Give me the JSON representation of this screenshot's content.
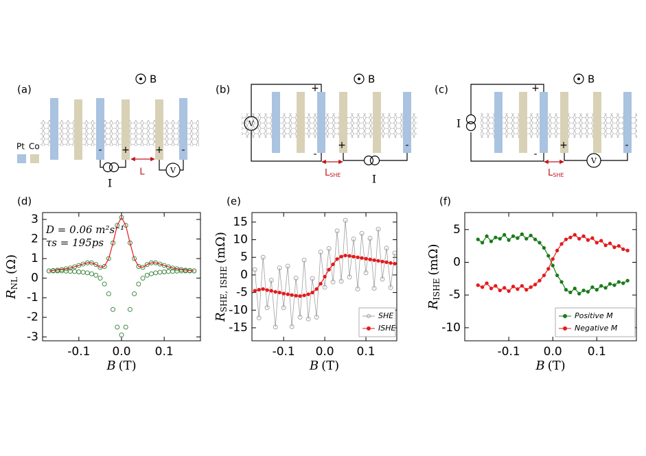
{
  "diagrams": [
    {
      "label": "(a)",
      "field": "B",
      "materials": [
        "Pt",
        "Co"
      ],
      "signs": [
        "-",
        "+",
        "+",
        "-"
      ],
      "source": "I",
      "distance": "L",
      "meter": "V"
    },
    {
      "label": "(b)",
      "field": "B",
      "signs": [
        "+",
        "-",
        "+",
        "-"
      ],
      "source": "I",
      "distance": {
        "main": "L",
        "sub": "SHE"
      },
      "meter": "V"
    },
    {
      "label": "(c)",
      "field": "B",
      "signs": [
        "+",
        "-",
        "+",
        "-"
      ],
      "source": "I",
      "distance": {
        "main": "L",
        "sub": "SHE"
      },
      "meter": "V"
    }
  ],
  "chart_data": [
    {
      "type": "line",
      "panel_label": "(d)",
      "x_label": {
        "main": "B",
        "unit": "(T)"
      },
      "y_label": {
        "main": "R",
        "sub": "NL",
        "unit": "(Ω)"
      },
      "annotations": [
        "D = 0.06 m²s⁻¹",
        "τs = 195ps"
      ],
      "x": [
        -0.17,
        -0.16,
        -0.15,
        -0.14,
        -0.13,
        -0.12,
        -0.11,
        -0.1,
        -0.09,
        -0.08,
        -0.07,
        -0.06,
        -0.05,
        -0.04,
        -0.03,
        -0.02,
        -0.01,
        0,
        0.01,
        0.02,
        0.03,
        0.04,
        0.05,
        0.06,
        0.07,
        0.08,
        0.09,
        0.1,
        0.11,
        0.12,
        0.13,
        0.14,
        0.15,
        0.16,
        0.17
      ],
      "xlim": [
        -0.185,
        0.185
      ],
      "xticks": [
        -0.1,
        {
          "value": 0,
          "label": "0.0"
        },
        0.1
      ],
      "ylim": [
        -3.2,
        3.35
      ],
      "yticks": [
        -3,
        -2,
        -1,
        0,
        1,
        2,
        3
      ],
      "series": [
        {
          "color": "#2e7d32",
          "marker": "open-circle",
          "line": false,
          "values": [
            0.37,
            0.39,
            0.41,
            0.44,
            0.48,
            0.52,
            0.58,
            0.65,
            0.72,
            0.78,
            0.78,
            0.7,
            0.55,
            0.6,
            1.0,
            1.8,
            2.7,
            3.1,
            2.7,
            1.8,
            1.0,
            0.6,
            0.55,
            0.7,
            0.78,
            0.78,
            0.72,
            0.65,
            0.58,
            0.52,
            0.48,
            0.44,
            0.41,
            0.39,
            0.37
          ]
        },
        {
          "color": "#2e7d32",
          "marker": "open-circle",
          "line": false,
          "values": [
            0.37,
            0.37,
            0.37,
            0.37,
            0.36,
            0.35,
            0.34,
            0.32,
            0.3,
            0.27,
            0.22,
            0.15,
            0.0,
            -0.3,
            -0.8,
            -1.6,
            -2.5,
            -2.9,
            -2.5,
            -1.6,
            -0.8,
            -0.3,
            0.0,
            0.15,
            0.22,
            0.27,
            0.3,
            0.32,
            0.34,
            0.35,
            0.36,
            0.37,
            0.37,
            0.37,
            0.37
          ]
        },
        {
          "color": "#e41a1c",
          "marker": "none",
          "line": true,
          "values": [
            0.37,
            0.39,
            0.41,
            0.44,
            0.48,
            0.52,
            0.58,
            0.65,
            0.72,
            0.78,
            0.78,
            0.7,
            0.55,
            0.6,
            1.0,
            1.8,
            2.7,
            3.1,
            2.7,
            1.8,
            1.0,
            0.6,
            0.55,
            0.7,
            0.78,
            0.78,
            0.72,
            0.65,
            0.58,
            0.52,
            0.48,
            0.44,
            0.41,
            0.39,
            0.37
          ]
        }
      ]
    },
    {
      "type": "line",
      "panel_label": "(e)",
      "x_label": {
        "main": "B",
        "unit": "(T)"
      },
      "y_label": {
        "main": "R",
        "sub": "SHE, ISHE",
        "unit": "(mΩ)"
      },
      "legend": "lower right",
      "x": [
        -0.17,
        -0.16,
        -0.15,
        -0.14,
        -0.13,
        -0.12,
        -0.11,
        -0.1,
        -0.09,
        -0.08,
        -0.07,
        -0.06,
        -0.05,
        -0.04,
        -0.03,
        -0.02,
        -0.01,
        0,
        0.01,
        0.02,
        0.03,
        0.04,
        0.05,
        0.06,
        0.07,
        0.08,
        0.09,
        0.1,
        0.11,
        0.12,
        0.13,
        0.14,
        0.15,
        0.16,
        0.17
      ],
      "xlim": [
        -0.177,
        0.175
      ],
      "xticks": [
        -0.1,
        {
          "value": 0,
          "label": "0.0"
        },
        0.1
      ],
      "ylim": [
        -18.7,
        17.7
      ],
      "yticks": [
        -15,
        -10,
        -5,
        0,
        5,
        10,
        15
      ],
      "series": [
        {
          "name": "SHE",
          "color": "#9e9e9e",
          "marker": "open-circle",
          "line": true,
          "values": [
            1.5,
            -12.2,
            5,
            -9.3,
            -1.5,
            -14.8,
            2,
            -9.3,
            2.5,
            -14.7,
            -0.9,
            -12,
            4.2,
            -12.5,
            -1,
            -12,
            6.5,
            -3.5,
            7.5,
            -2,
            12.5,
            -1.8,
            15.5,
            -0.6,
            10.2,
            -4,
            11.8,
            0.6,
            10.4,
            -3.8,
            13,
            -1.2,
            7.6,
            -3.6,
            6.2
          ]
        },
        {
          "name": "ISHE",
          "color": "#e41a1c",
          "marker": "dot",
          "line": true,
          "values": [
            -4.5,
            -4.2,
            -4.0,
            -4.3,
            -4.5,
            -4.8,
            -5.0,
            -5.3,
            -5.5,
            -5.7,
            -5.9,
            -6.0,
            -5.8,
            -5.5,
            -5.0,
            -4.0,
            -2.5,
            -0.5,
            1.5,
            3.0,
            4.5,
            5.2,
            5.5,
            5.4,
            5.2,
            5.0,
            4.8,
            4.6,
            4.4,
            4.2,
            4.0,
            3.8,
            3.6,
            3.4,
            3.2
          ]
        }
      ]
    },
    {
      "type": "line",
      "panel_label": "(f)",
      "x_label": {
        "main": "B",
        "unit": "(T)"
      },
      "y_label": {
        "main": "R",
        "sub": "ISHE",
        "unit": "(mΩ)"
      },
      "legend": "lower right",
      "x": [
        -0.17,
        -0.16,
        -0.15,
        -0.14,
        -0.13,
        -0.12,
        -0.11,
        -0.1,
        -0.09,
        -0.08,
        -0.07,
        -0.06,
        -0.05,
        -0.04,
        -0.03,
        -0.02,
        -0.01,
        0,
        0.01,
        0.02,
        0.03,
        0.04,
        0.05,
        0.06,
        0.07,
        0.08,
        0.09,
        0.1,
        0.11,
        0.12,
        0.13,
        0.14,
        0.15,
        0.16,
        0.17
      ],
      "xlim": [
        -0.2,
        0.19
      ],
      "xticks": [
        -0.1,
        {
          "value": 0,
          "label": "0.0"
        },
        0.1
      ],
      "ylim": [
        -12,
        7.6
      ],
      "yticks": [
        -10,
        -5,
        0,
        5
      ],
      "series": [
        {
          "name": "Positive M",
          "color": "#1b7a1b",
          "marker": "dot",
          "line": true,
          "values": [
            3.5,
            3.0,
            4.0,
            3.2,
            3.8,
            3.6,
            4.2,
            3.4,
            4.0,
            3.7,
            4.3,
            3.6,
            4.1,
            3.5,
            3.0,
            2.2,
            1.0,
            -0.5,
            -2.0,
            -3.0,
            -4.2,
            -4.6,
            -4.0,
            -4.8,
            -4.3,
            -4.5,
            -3.8,
            -4.2,
            -3.6,
            -3.9,
            -3.3,
            -3.5,
            -3.0,
            -3.2,
            -2.8
          ]
        },
        {
          "name": "Negative M",
          "color": "#e41a1c",
          "marker": "dot",
          "line": true,
          "values": [
            -3.5,
            -3.8,
            -3.2,
            -4.0,
            -3.6,
            -4.3,
            -3.9,
            -4.4,
            -3.7,
            -4.1,
            -3.6,
            -4.2,
            -3.8,
            -3.4,
            -2.8,
            -2.0,
            -1.0,
            0.5,
            1.8,
            2.8,
            3.5,
            3.8,
            4.2,
            3.6,
            4.0,
            3.4,
            3.7,
            3.0,
            3.3,
            2.6,
            2.9,
            2.3,
            2.5,
            2.0,
            1.8
          ]
        }
      ]
    }
  ]
}
